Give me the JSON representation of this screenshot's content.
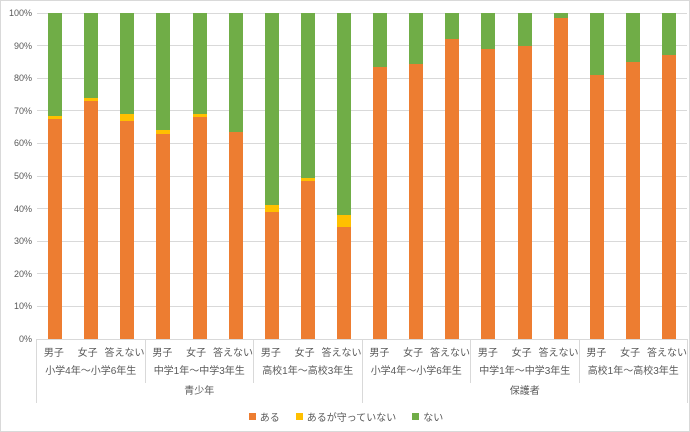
{
  "chart_data": {
    "type": "bar",
    "subtype": "100-percent-stacked-column",
    "title": "",
    "ylabel": "",
    "xlabel": "",
    "ylim": [
      0,
      100
    ],
    "grid": true,
    "y_ticks": [
      "0%",
      "10%",
      "20%",
      "30%",
      "40%",
      "50%",
      "60%",
      "70%",
      "80%",
      "90%",
      "100%"
    ],
    "legend_position": "bottom",
    "legend": [
      "ある",
      "あるが守っていない",
      "ない"
    ],
    "colors": {
      "ある": "#ED7D31",
      "あるが守っていない": "#FFC000",
      "ない": "#70AD47",
      "gridline": "#D9D9D9",
      "axis_text": "#595959"
    },
    "series_order_note": "values per bar are [ある, あるが守っていない, ない] in percent, stacked bottom to top",
    "groups": [
      {
        "label": "青少年",
        "subgroups": [
          {
            "label": "小学4年～小学6年生",
            "bars": [
              {
                "label": "男子",
                "values": [
                  67.5,
                  1.0,
                  31.5
                ]
              },
              {
                "label": "女子",
                "values": [
                  73.0,
                  1.0,
                  26.0
                ]
              },
              {
                "label": "答えない",
                "values": [
                  67.0,
                  2.0,
                  31.0
                ]
              }
            ]
          },
          {
            "label": "中学1年～中学3年生",
            "bars": [
              {
                "label": "男子",
                "values": [
                  63.0,
                  1.0,
                  36.0
                ]
              },
              {
                "label": "女子",
                "values": [
                  68.0,
                  1.0,
                  31.0
                ]
              },
              {
                "label": "答えない",
                "values": [
                  63.5,
                  0.0,
                  36.5
                ]
              }
            ]
          },
          {
            "label": "高校1年～高校3年生",
            "bars": [
              {
                "label": "男子",
                "values": [
                  39.0,
                  2.0,
                  59.0
                ]
              },
              {
                "label": "女子",
                "values": [
                  48.5,
                  1.0,
                  50.5
                ]
              },
              {
                "label": "答えない",
                "values": [
                  34.5,
                  3.5,
                  62.0
                ]
              }
            ]
          }
        ]
      },
      {
        "label": "保護者",
        "subgroups": [
          {
            "label": "小学4年～小学6年生",
            "bars": [
              {
                "label": "男子",
                "values": [
                  83.5,
                  0.0,
                  16.5
                ]
              },
              {
                "label": "女子",
                "values": [
                  84.5,
                  0.0,
                  15.5
                ]
              },
              {
                "label": "答えない",
                "values": [
                  92.0,
                  0.0,
                  8.0
                ]
              }
            ]
          },
          {
            "label": "中学1年～中学3年生",
            "bars": [
              {
                "label": "男子",
                "values": [
                  89.0,
                  0.0,
                  11.0
                ]
              },
              {
                "label": "女子",
                "values": [
                  90.0,
                  0.0,
                  10.0
                ]
              },
              {
                "label": "答えない",
                "values": [
                  98.5,
                  0.0,
                  1.5
                ]
              }
            ]
          },
          {
            "label": "高校1年～高校3年生",
            "bars": [
              {
                "label": "男子",
                "values": [
                  81.0,
                  0.0,
                  19.0
                ]
              },
              {
                "label": "女子",
                "values": [
                  85.0,
                  0.0,
                  15.0
                ]
              },
              {
                "label": "答えない",
                "values": [
                  87.0,
                  0.0,
                  13.0
                ]
              }
            ]
          }
        ]
      }
    ]
  }
}
